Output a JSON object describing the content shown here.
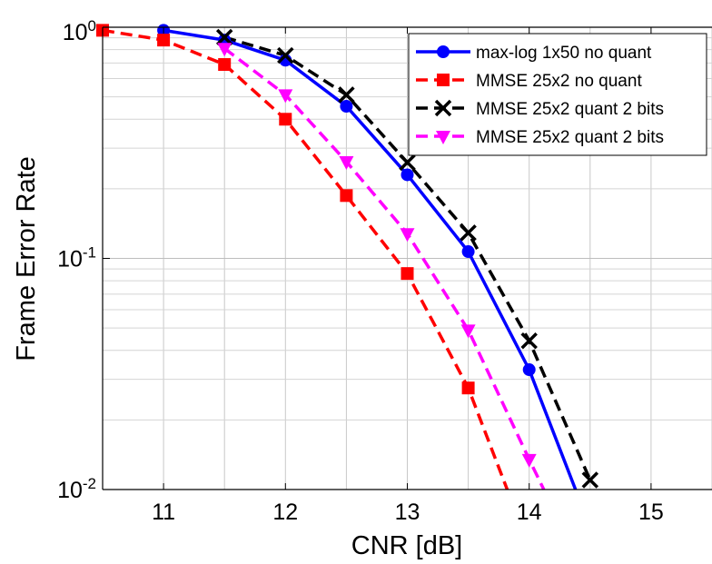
{
  "chart_data": {
    "type": "line",
    "xlabel": "CNR [dB]",
    "ylabel": "Frame Error Rate",
    "xlim": [
      10.5,
      15.5
    ],
    "ylim": [
      0.01,
      1
    ],
    "yscale": "log",
    "grid": true,
    "legend_position": "top-right",
    "x_ticks": [
      11,
      12,
      13,
      14,
      15
    ],
    "x_tick_labels": [
      "11",
      "12",
      "13",
      "14",
      "15"
    ],
    "y_ticks": [
      {
        "value": 1,
        "base": "10",
        "exp": "0"
      },
      {
        "value": 0.1,
        "base": "10",
        "exp": "-1"
      },
      {
        "value": 0.01,
        "base": "10",
        "exp": "-2"
      }
    ],
    "series": [
      {
        "name": "max-log 1x50 no quant",
        "color": "#0000ff",
        "dash": "solid",
        "marker": "circle",
        "points": [
          [
            11,
            0.97
          ],
          [
            11.5,
            0.88
          ],
          [
            12,
            0.72
          ],
          [
            12.5,
            0.455
          ],
          [
            13,
            0.23
          ],
          [
            13.5,
            0.107
          ],
          [
            14,
            0.033
          ],
          [
            14.38,
            0.01
          ]
        ],
        "marker_count": 7
      },
      {
        "name": "MMSE 25x2 no quant",
        "color": "#ff0000",
        "dash": "dashed",
        "marker": "square",
        "points": [
          [
            10.5,
            0.97
          ],
          [
            11,
            0.88
          ],
          [
            11.5,
            0.69
          ],
          [
            12,
            0.4
          ],
          [
            12.5,
            0.187
          ],
          [
            13,
            0.086
          ],
          [
            13.5,
            0.0275
          ],
          [
            13.82,
            0.01
          ]
        ],
        "marker_count": 7
      },
      {
        "name": "MMSE 25x2 quant 2 bits",
        "color": "#000000",
        "dash": "dashed",
        "marker": "x",
        "points": [
          [
            11.5,
            0.905
          ],
          [
            12,
            0.755
          ],
          [
            12.5,
            0.51
          ],
          [
            13,
            0.26
          ],
          [
            13.5,
            0.129
          ],
          [
            14,
            0.044
          ],
          [
            14.5,
            0.011
          ]
        ],
        "marker_count": 7
      },
      {
        "name": "MMSE 25x2 quant 2 bits",
        "color": "#ff00ff",
        "dash": "dashed",
        "marker": "triangle-down",
        "points": [
          [
            11.5,
            0.81
          ],
          [
            12,
            0.51
          ],
          [
            12.5,
            0.262
          ],
          [
            13,
            0.128
          ],
          [
            13.5,
            0.049
          ],
          [
            14,
            0.0135
          ],
          [
            14.12,
            0.01
          ]
        ],
        "marker_count": 6
      }
    ]
  }
}
